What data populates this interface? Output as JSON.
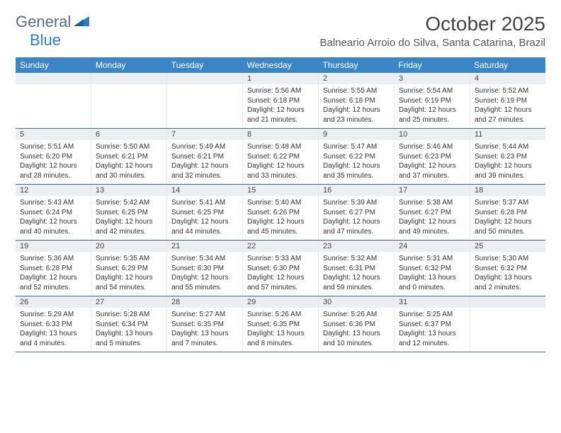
{
  "logo": {
    "text_general": "General",
    "text_blue": "Blue"
  },
  "header": {
    "month_title": "October 2025",
    "location": "Balneario Arroio do Silva, Santa Catarina, Brazil"
  },
  "colors": {
    "header_bg": "#3b86c7",
    "header_text": "#ffffff",
    "row_border": "#3b6a9a",
    "daynum_bg": "#eceff1",
    "body_text": "#333333"
  },
  "day_headers": [
    "Sunday",
    "Monday",
    "Tuesday",
    "Wednesday",
    "Thursday",
    "Friday",
    "Saturday"
  ],
  "weeks": [
    [
      {
        "day": "",
        "sunrise": "",
        "sunset": "",
        "daylight1": "",
        "daylight2": ""
      },
      {
        "day": "",
        "sunrise": "",
        "sunset": "",
        "daylight1": "",
        "daylight2": ""
      },
      {
        "day": "",
        "sunrise": "",
        "sunset": "",
        "daylight1": "",
        "daylight2": ""
      },
      {
        "day": "1",
        "sunrise": "Sunrise: 5:56 AM",
        "sunset": "Sunset: 6:18 PM",
        "daylight1": "Daylight: 12 hours",
        "daylight2": "and 21 minutes."
      },
      {
        "day": "2",
        "sunrise": "Sunrise: 5:55 AM",
        "sunset": "Sunset: 6:18 PM",
        "daylight1": "Daylight: 12 hours",
        "daylight2": "and 23 minutes."
      },
      {
        "day": "3",
        "sunrise": "Sunrise: 5:54 AM",
        "sunset": "Sunset: 6:19 PM",
        "daylight1": "Daylight: 12 hours",
        "daylight2": "and 25 minutes."
      },
      {
        "day": "4",
        "sunrise": "Sunrise: 5:52 AM",
        "sunset": "Sunset: 6:19 PM",
        "daylight1": "Daylight: 12 hours",
        "daylight2": "and 27 minutes."
      }
    ],
    [
      {
        "day": "5",
        "sunrise": "Sunrise: 5:51 AM",
        "sunset": "Sunset: 6:20 PM",
        "daylight1": "Daylight: 12 hours",
        "daylight2": "and 28 minutes."
      },
      {
        "day": "6",
        "sunrise": "Sunrise: 5:50 AM",
        "sunset": "Sunset: 6:21 PM",
        "daylight1": "Daylight: 12 hours",
        "daylight2": "and 30 minutes."
      },
      {
        "day": "7",
        "sunrise": "Sunrise: 5:49 AM",
        "sunset": "Sunset: 6:21 PM",
        "daylight1": "Daylight: 12 hours",
        "daylight2": "and 32 minutes."
      },
      {
        "day": "8",
        "sunrise": "Sunrise: 5:48 AM",
        "sunset": "Sunset: 6:22 PM",
        "daylight1": "Daylight: 12 hours",
        "daylight2": "and 33 minutes."
      },
      {
        "day": "9",
        "sunrise": "Sunrise: 5:47 AM",
        "sunset": "Sunset: 6:22 PM",
        "daylight1": "Daylight: 12 hours",
        "daylight2": "and 35 minutes."
      },
      {
        "day": "10",
        "sunrise": "Sunrise: 5:46 AM",
        "sunset": "Sunset: 6:23 PM",
        "daylight1": "Daylight: 12 hours",
        "daylight2": "and 37 minutes."
      },
      {
        "day": "11",
        "sunrise": "Sunrise: 5:44 AM",
        "sunset": "Sunset: 6:23 PM",
        "daylight1": "Daylight: 12 hours",
        "daylight2": "and 39 minutes."
      }
    ],
    [
      {
        "day": "12",
        "sunrise": "Sunrise: 5:43 AM",
        "sunset": "Sunset: 6:24 PM",
        "daylight1": "Daylight: 12 hours",
        "daylight2": "and 40 minutes."
      },
      {
        "day": "13",
        "sunrise": "Sunrise: 5:42 AM",
        "sunset": "Sunset: 6:25 PM",
        "daylight1": "Daylight: 12 hours",
        "daylight2": "and 42 minutes."
      },
      {
        "day": "14",
        "sunrise": "Sunrise: 5:41 AM",
        "sunset": "Sunset: 6:25 PM",
        "daylight1": "Daylight: 12 hours",
        "daylight2": "and 44 minutes."
      },
      {
        "day": "15",
        "sunrise": "Sunrise: 5:40 AM",
        "sunset": "Sunset: 6:26 PM",
        "daylight1": "Daylight: 12 hours",
        "daylight2": "and 45 minutes."
      },
      {
        "day": "16",
        "sunrise": "Sunrise: 5:39 AM",
        "sunset": "Sunset: 6:27 PM",
        "daylight1": "Daylight: 12 hours",
        "daylight2": "and 47 minutes."
      },
      {
        "day": "17",
        "sunrise": "Sunrise: 5:38 AM",
        "sunset": "Sunset: 6:27 PM",
        "daylight1": "Daylight: 12 hours",
        "daylight2": "and 49 minutes."
      },
      {
        "day": "18",
        "sunrise": "Sunrise: 5:37 AM",
        "sunset": "Sunset: 6:28 PM",
        "daylight1": "Daylight: 12 hours",
        "daylight2": "and 50 minutes."
      }
    ],
    [
      {
        "day": "19",
        "sunrise": "Sunrise: 5:36 AM",
        "sunset": "Sunset: 6:28 PM",
        "daylight1": "Daylight: 12 hours",
        "daylight2": "and 52 minutes."
      },
      {
        "day": "20",
        "sunrise": "Sunrise: 5:35 AM",
        "sunset": "Sunset: 6:29 PM",
        "daylight1": "Daylight: 12 hours",
        "daylight2": "and 54 minutes."
      },
      {
        "day": "21",
        "sunrise": "Sunrise: 5:34 AM",
        "sunset": "Sunset: 6:30 PM",
        "daylight1": "Daylight: 12 hours",
        "daylight2": "and 55 minutes."
      },
      {
        "day": "22",
        "sunrise": "Sunrise: 5:33 AM",
        "sunset": "Sunset: 6:30 PM",
        "daylight1": "Daylight: 12 hours",
        "daylight2": "and 57 minutes."
      },
      {
        "day": "23",
        "sunrise": "Sunrise: 5:32 AM",
        "sunset": "Sunset: 6:31 PM",
        "daylight1": "Daylight: 12 hours",
        "daylight2": "and 59 minutes."
      },
      {
        "day": "24",
        "sunrise": "Sunrise: 5:31 AM",
        "sunset": "Sunset: 6:32 PM",
        "daylight1": "Daylight: 13 hours",
        "daylight2": "and 0 minutes."
      },
      {
        "day": "25",
        "sunrise": "Sunrise: 5:30 AM",
        "sunset": "Sunset: 6:32 PM",
        "daylight1": "Daylight: 13 hours",
        "daylight2": "and 2 minutes."
      }
    ],
    [
      {
        "day": "26",
        "sunrise": "Sunrise: 5:29 AM",
        "sunset": "Sunset: 6:33 PM",
        "daylight1": "Daylight: 13 hours",
        "daylight2": "and 4 minutes."
      },
      {
        "day": "27",
        "sunrise": "Sunrise: 5:28 AM",
        "sunset": "Sunset: 6:34 PM",
        "daylight1": "Daylight: 13 hours",
        "daylight2": "and 5 minutes."
      },
      {
        "day": "28",
        "sunrise": "Sunrise: 5:27 AM",
        "sunset": "Sunset: 6:35 PM",
        "daylight1": "Daylight: 13 hours",
        "daylight2": "and 7 minutes."
      },
      {
        "day": "29",
        "sunrise": "Sunrise: 5:26 AM",
        "sunset": "Sunset: 6:35 PM",
        "daylight1": "Daylight: 13 hours",
        "daylight2": "and 8 minutes."
      },
      {
        "day": "30",
        "sunrise": "Sunrise: 5:26 AM",
        "sunset": "Sunset: 6:36 PM",
        "daylight1": "Daylight: 13 hours",
        "daylight2": "and 10 minutes."
      },
      {
        "day": "31",
        "sunrise": "Sunrise: 5:25 AM",
        "sunset": "Sunset: 6:37 PM",
        "daylight1": "Daylight: 13 hours",
        "daylight2": "and 12 minutes."
      },
      {
        "day": "",
        "sunrise": "",
        "sunset": "",
        "daylight1": "",
        "daylight2": ""
      }
    ]
  ]
}
